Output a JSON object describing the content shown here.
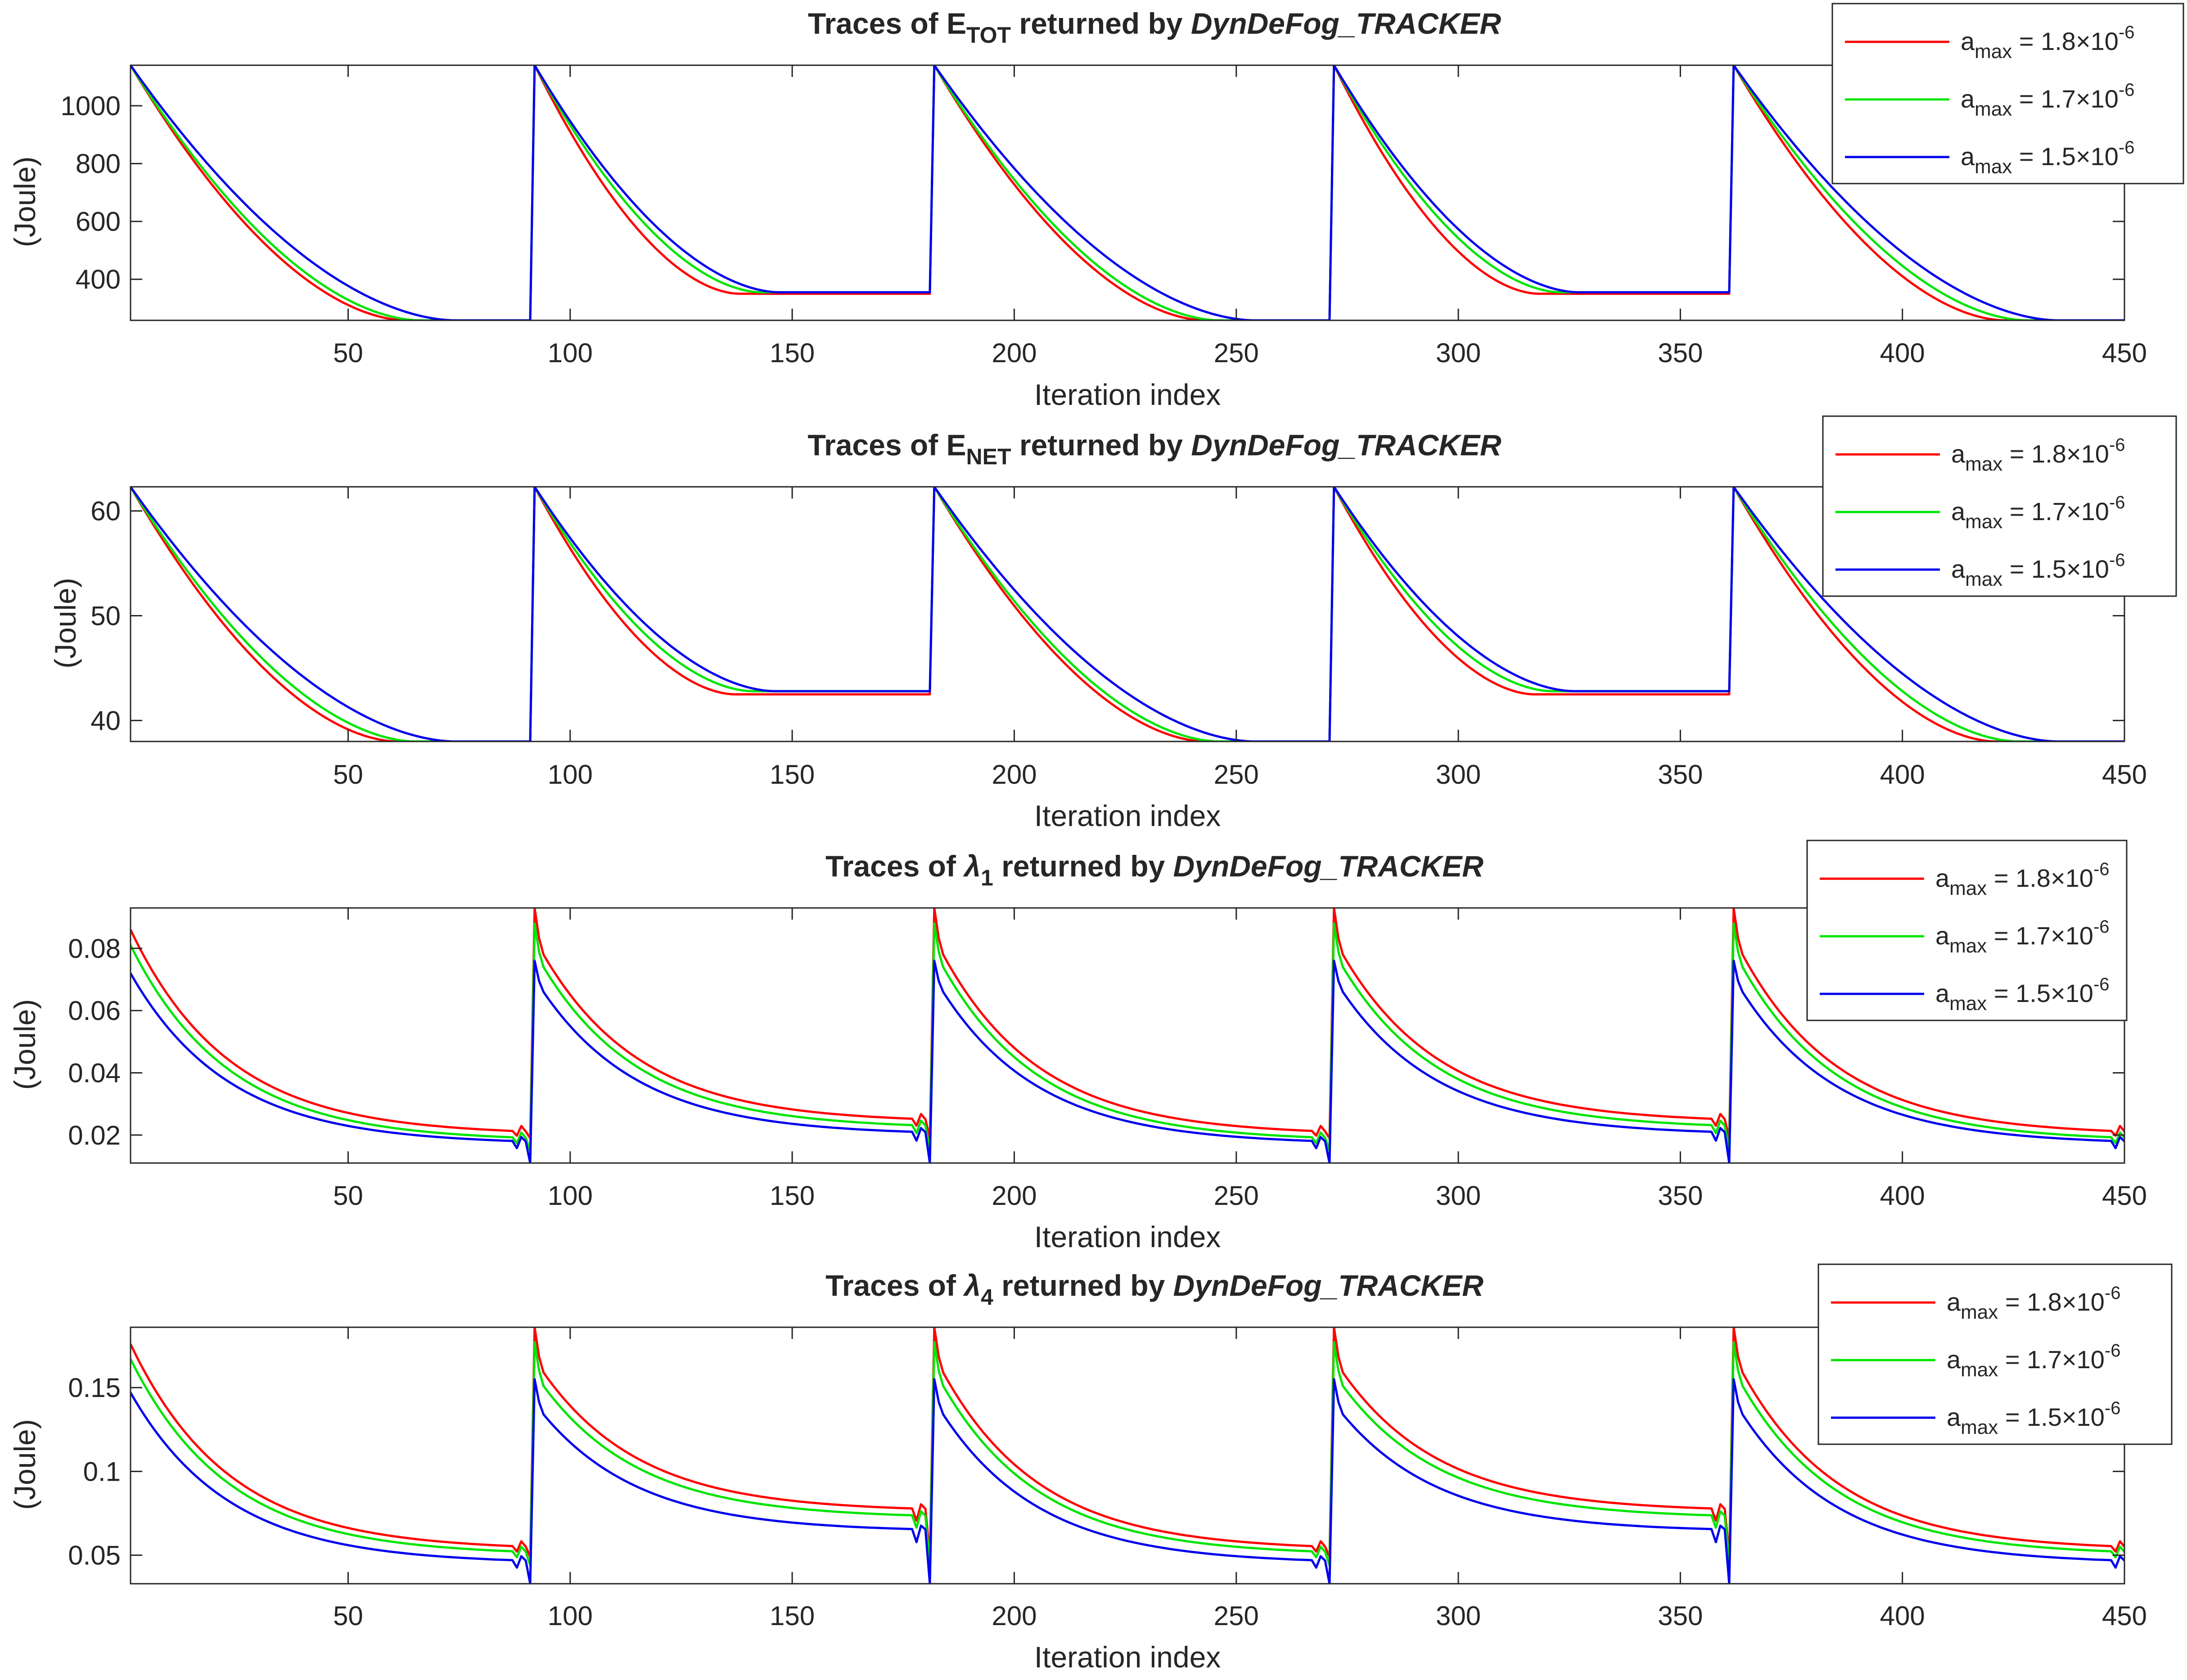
{
  "colors": {
    "series": [
      "#ff0000",
      "#00e400",
      "#0000ee"
    ],
    "axis": "#262626"
  },
  "chart_data": [
    {
      "type": "line",
      "title": {
        "prefix": "Traces of ",
        "symbol": "E",
        "symbol_italic": false,
        "subscript": "TOT",
        "middle": " returned by ",
        "name": "DynDeFog_TRACKER"
      },
      "xlabel": "Iteration index",
      "ylabel": "(Joule)",
      "xlim": [
        1,
        450
      ],
      "ylim": [
        258,
        1140
      ],
      "xticks": [
        50,
        100,
        150,
        200,
        250,
        300,
        350,
        400,
        450
      ],
      "yticks": [
        400,
        600,
        800,
        1000
      ],
      "ytick_labels": [
        "400",
        "600",
        "800",
        "1000"
      ],
      "reset_period": 90,
      "series": [
        {
          "legend": {
            "symbol": "a",
            "subscript": "max",
            "mantissa": " = 1.8×10",
            "exponent": "-6"
          },
          "start": 1140,
          "floors": [
            258,
            350,
            258,
            350,
            258
          ],
          "floor_iteration": [
            63,
            138,
            243,
            318,
            423
          ]
        },
        {
          "legend": {
            "symbol": "a",
            "subscript": "max",
            "mantissa": " = 1.7×10",
            "exponent": "-6"
          },
          "start": 1140,
          "floors": [
            258,
            355,
            258,
            355,
            258
          ],
          "floor_iteration": [
            66,
            143,
            246,
            323,
            428
          ]
        },
        {
          "legend": {
            "symbol": "a",
            "subscript": "max",
            "mantissa": " = 1.5×10",
            "exponent": "-6"
          },
          "start": 1140,
          "floors": [
            258,
            355,
            258,
            355,
            258
          ],
          "floor_iteration": [
            74,
            147,
            254,
            327,
            435
          ]
        }
      ]
    },
    {
      "type": "line",
      "title": {
        "prefix": "Traces of ",
        "symbol": "E",
        "symbol_italic": false,
        "subscript": "NET",
        "middle": " returned by ",
        "name": "DynDeFog_TRACKER"
      },
      "xlabel": "Iteration index",
      "ylabel": "(Joule)",
      "xlim": [
        1,
        450
      ],
      "ylim": [
        38,
        62.3
      ],
      "xticks": [
        50,
        100,
        150,
        200,
        250,
        300,
        350,
        400,
        450
      ],
      "yticks": [
        40,
        50,
        60
      ],
      "ytick_labels": [
        "40",
        "50",
        "60"
      ],
      "reset_period": 90,
      "series": [
        {
          "legend": {
            "symbol": "a",
            "subscript": "max",
            "mantissa": " = 1.8×10",
            "exponent": "-6"
          },
          "start": 62.3,
          "floors": [
            38,
            42.5,
            38,
            42.5,
            38
          ],
          "floor_iteration": [
            61,
            137,
            243,
            317,
            421
          ]
        },
        {
          "legend": {
            "symbol": "a",
            "subscript": "max",
            "mantissa": " = 1.7×10",
            "exponent": "-6"
          },
          "start": 62.3,
          "floors": [
            38,
            42.8,
            38,
            42.8,
            38
          ],
          "floor_iteration": [
            65,
            141,
            246,
            321,
            426
          ]
        },
        {
          "legend": {
            "symbol": "a",
            "subscript": "max",
            "mantissa": " = 1.5×10",
            "exponent": "-6"
          },
          "start": 62.3,
          "floors": [
            38,
            42.8,
            38,
            42.8,
            38
          ],
          "floor_iteration": [
            74,
            146,
            254,
            326,
            435
          ]
        }
      ]
    },
    {
      "type": "line",
      "title": {
        "prefix": "Traces of ",
        "symbol": "λ",
        "symbol_italic": true,
        "subscript": "1",
        "middle": " returned by ",
        "name": "DynDeFog_TRACKER"
      },
      "xlabel": "Iteration index",
      "ylabel": "(Joule)",
      "xlim": [
        1,
        450
      ],
      "ylim": [
        0.011,
        0.093
      ],
      "xticks": [
        50,
        100,
        150,
        200,
        250,
        300,
        350,
        400,
        450
      ],
      "yticks": [
        0.02,
        0.04,
        0.06,
        0.08
      ],
      "ytick_labels": [
        "0.02",
        "0.04",
        "0.06",
        "0.08"
      ],
      "reset_period": 90,
      "series": [
        {
          "legend": {
            "symbol": "a",
            "subscript": "max",
            "mantissa": " = 1.8×10",
            "exponent": "-6"
          },
          "start": 0.086,
          "peak": 0.093,
          "shoulder": 0.078,
          "floors": [
            0.02,
            0.024,
            0.02,
            0.024,
            0.02
          ],
          "dip": 0.019
        },
        {
          "legend": {
            "symbol": "a",
            "subscript": "max",
            "mantissa": " = 1.7×10",
            "exponent": "-6"
          },
          "start": 0.081,
          "peak": 0.088,
          "shoulder": 0.074,
          "floors": [
            0.018,
            0.022,
            0.018,
            0.022,
            0.018
          ],
          "dip": 0.015
        },
        {
          "legend": {
            "symbol": "a",
            "subscript": "max",
            "mantissa": " = 1.5×10",
            "exponent": "-6"
          },
          "start": 0.072,
          "peak": 0.076,
          "shoulder": 0.066,
          "floors": [
            0.017,
            0.02,
            0.017,
            0.02,
            0.017
          ],
          "dip": 0.011
        }
      ]
    },
    {
      "type": "line",
      "title": {
        "prefix": "Traces of ",
        "symbol": "λ",
        "symbol_italic": true,
        "subscript": "4",
        "middle": " returned by ",
        "name": "DynDeFog_TRACKER"
      },
      "xlabel": "Iteration index",
      "ylabel": "(Joule)",
      "xlim": [
        1,
        450
      ],
      "ylim": [
        0.033,
        0.186
      ],
      "xticks": [
        50,
        100,
        150,
        200,
        250,
        300,
        350,
        400,
        450
      ],
      "yticks": [
        0.05,
        0.1,
        0.15
      ],
      "ytick_labels": [
        "0.05",
        "0.1",
        "0.15"
      ],
      "reset_period": 90,
      "series": [
        {
          "legend": {
            "symbol": "a",
            "subscript": "max",
            "mantissa": " = 1.8×10",
            "exponent": "-6"
          },
          "start": 0.176,
          "peak": 0.186,
          "shoulder": 0.159,
          "floors": [
            0.053,
            0.076,
            0.053,
            0.076,
            0.053
          ],
          "dip": 0.049
        },
        {
          "legend": {
            "symbol": "a",
            "subscript": "max",
            "mantissa": " = 1.7×10",
            "exponent": "-6"
          },
          "start": 0.167,
          "peak": 0.177,
          "shoulder": 0.151,
          "floors": [
            0.05,
            0.072,
            0.05,
            0.072,
            0.05
          ],
          "dip": 0.044
        },
        {
          "legend": {
            "symbol": "a",
            "subscript": "max",
            "mantissa": " = 1.5×10",
            "exponent": "-6"
          },
          "start": 0.147,
          "peak": 0.155,
          "shoulder": 0.134,
          "floors": [
            0.045,
            0.064,
            0.045,
            0.064,
            0.045
          ],
          "dip": 0.033
        }
      ]
    }
  ]
}
